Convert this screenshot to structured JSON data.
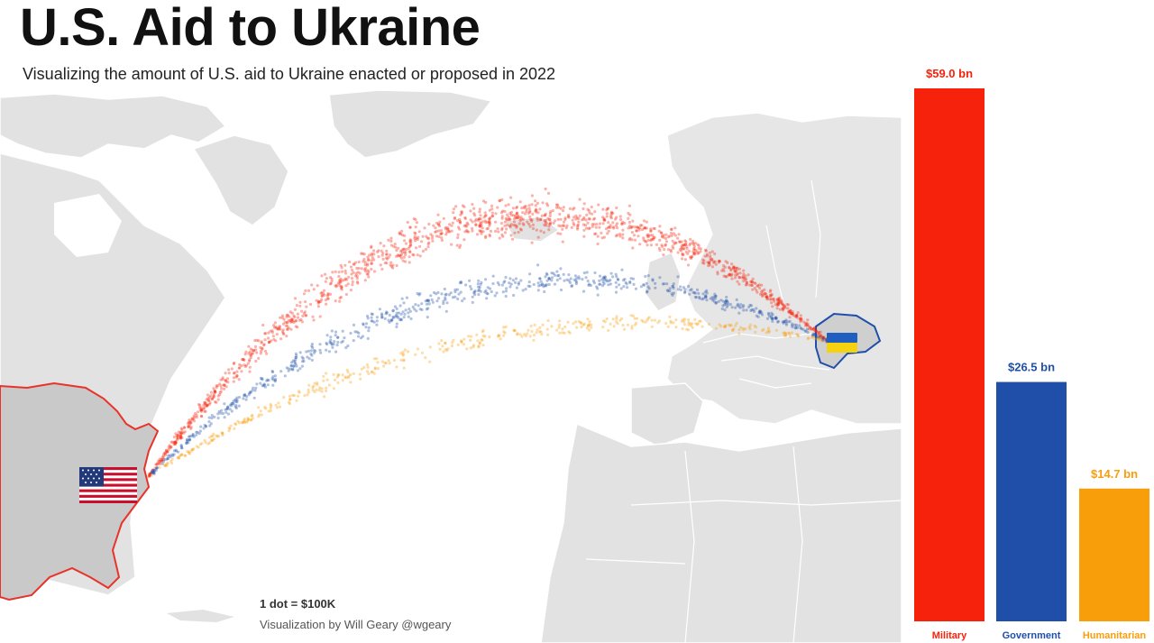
{
  "header": {
    "title": "U.S. Aid to Ukraine",
    "subtitle": "Visualizing the amount of U.S. aid to Ukraine enacted or proposed in 2022"
  },
  "footer": {
    "unit_note": "1 dot = $100K",
    "credit": "Visualization by Will Geary @wgeary"
  },
  "map": {
    "origin_flag": "us-flag-icon",
    "destination_flag": "ukraine-flag-icon"
  },
  "chart_data": {
    "type": "bar",
    "categories": [
      "Military",
      "Government",
      "Humanitarian"
    ],
    "values": [
      59.0,
      26.5,
      14.7
    ],
    "value_labels": [
      "$59.0 bn",
      "$26.5 bn",
      "$14.7 bn"
    ],
    "colors": [
      "#f7220c",
      "#1f4fa8",
      "#f99e0b"
    ],
    "units": "USD billions",
    "ylim": [
      0,
      59.0
    ],
    "grid": false
  }
}
